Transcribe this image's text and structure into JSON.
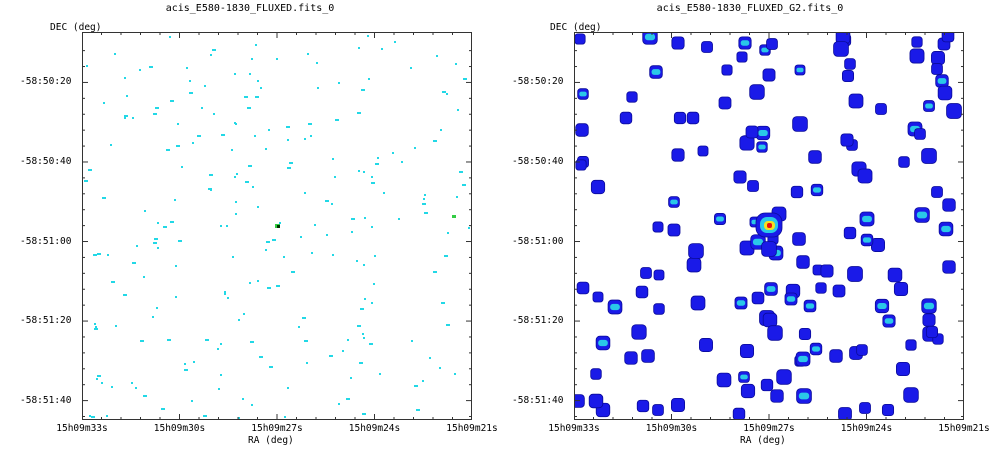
{
  "panels": [
    {
      "title": "acis_E580-1830_FLUXED.fits_0",
      "ylabel": "DEC (deg)",
      "xlabel": "RA (deg)",
      "xticks": [
        "15h09m33s",
        "15h09m30s",
        "15h09m27s",
        "15h09m24s",
        "15h09m21s"
      ],
      "yticks": [
        "-58:50:20",
        "-58:50:40",
        "-58:51:00",
        "-58:51:20",
        "-58:51:40"
      ],
      "style": "raw",
      "colors": {
        "speckle": "#22d8e6",
        "green": "#33cc44",
        "dark": "#003300"
      }
    },
    {
      "title": "acis_E580-1830_FLUXED_G2.fits_0",
      "ylabel": "DEC (deg)",
      "xlabel": "RA (deg)",
      "xticks": [
        "15h09m33s",
        "15h09m30s",
        "15h09m27s",
        "15h09m24s",
        "15h09m21s"
      ],
      "yticks": [
        "-58:50:20",
        "-58:50:40",
        "-58:51:00",
        "-58:51:20",
        "-58:51:40"
      ],
      "style": "smoothed",
      "colors": {
        "blob": "#1a1ae8",
        "blob_edge": "#0a0a9a",
        "cyan": "#2ac8e8",
        "yellow": "#f4e020",
        "red": "#e81010"
      }
    }
  ]
}
